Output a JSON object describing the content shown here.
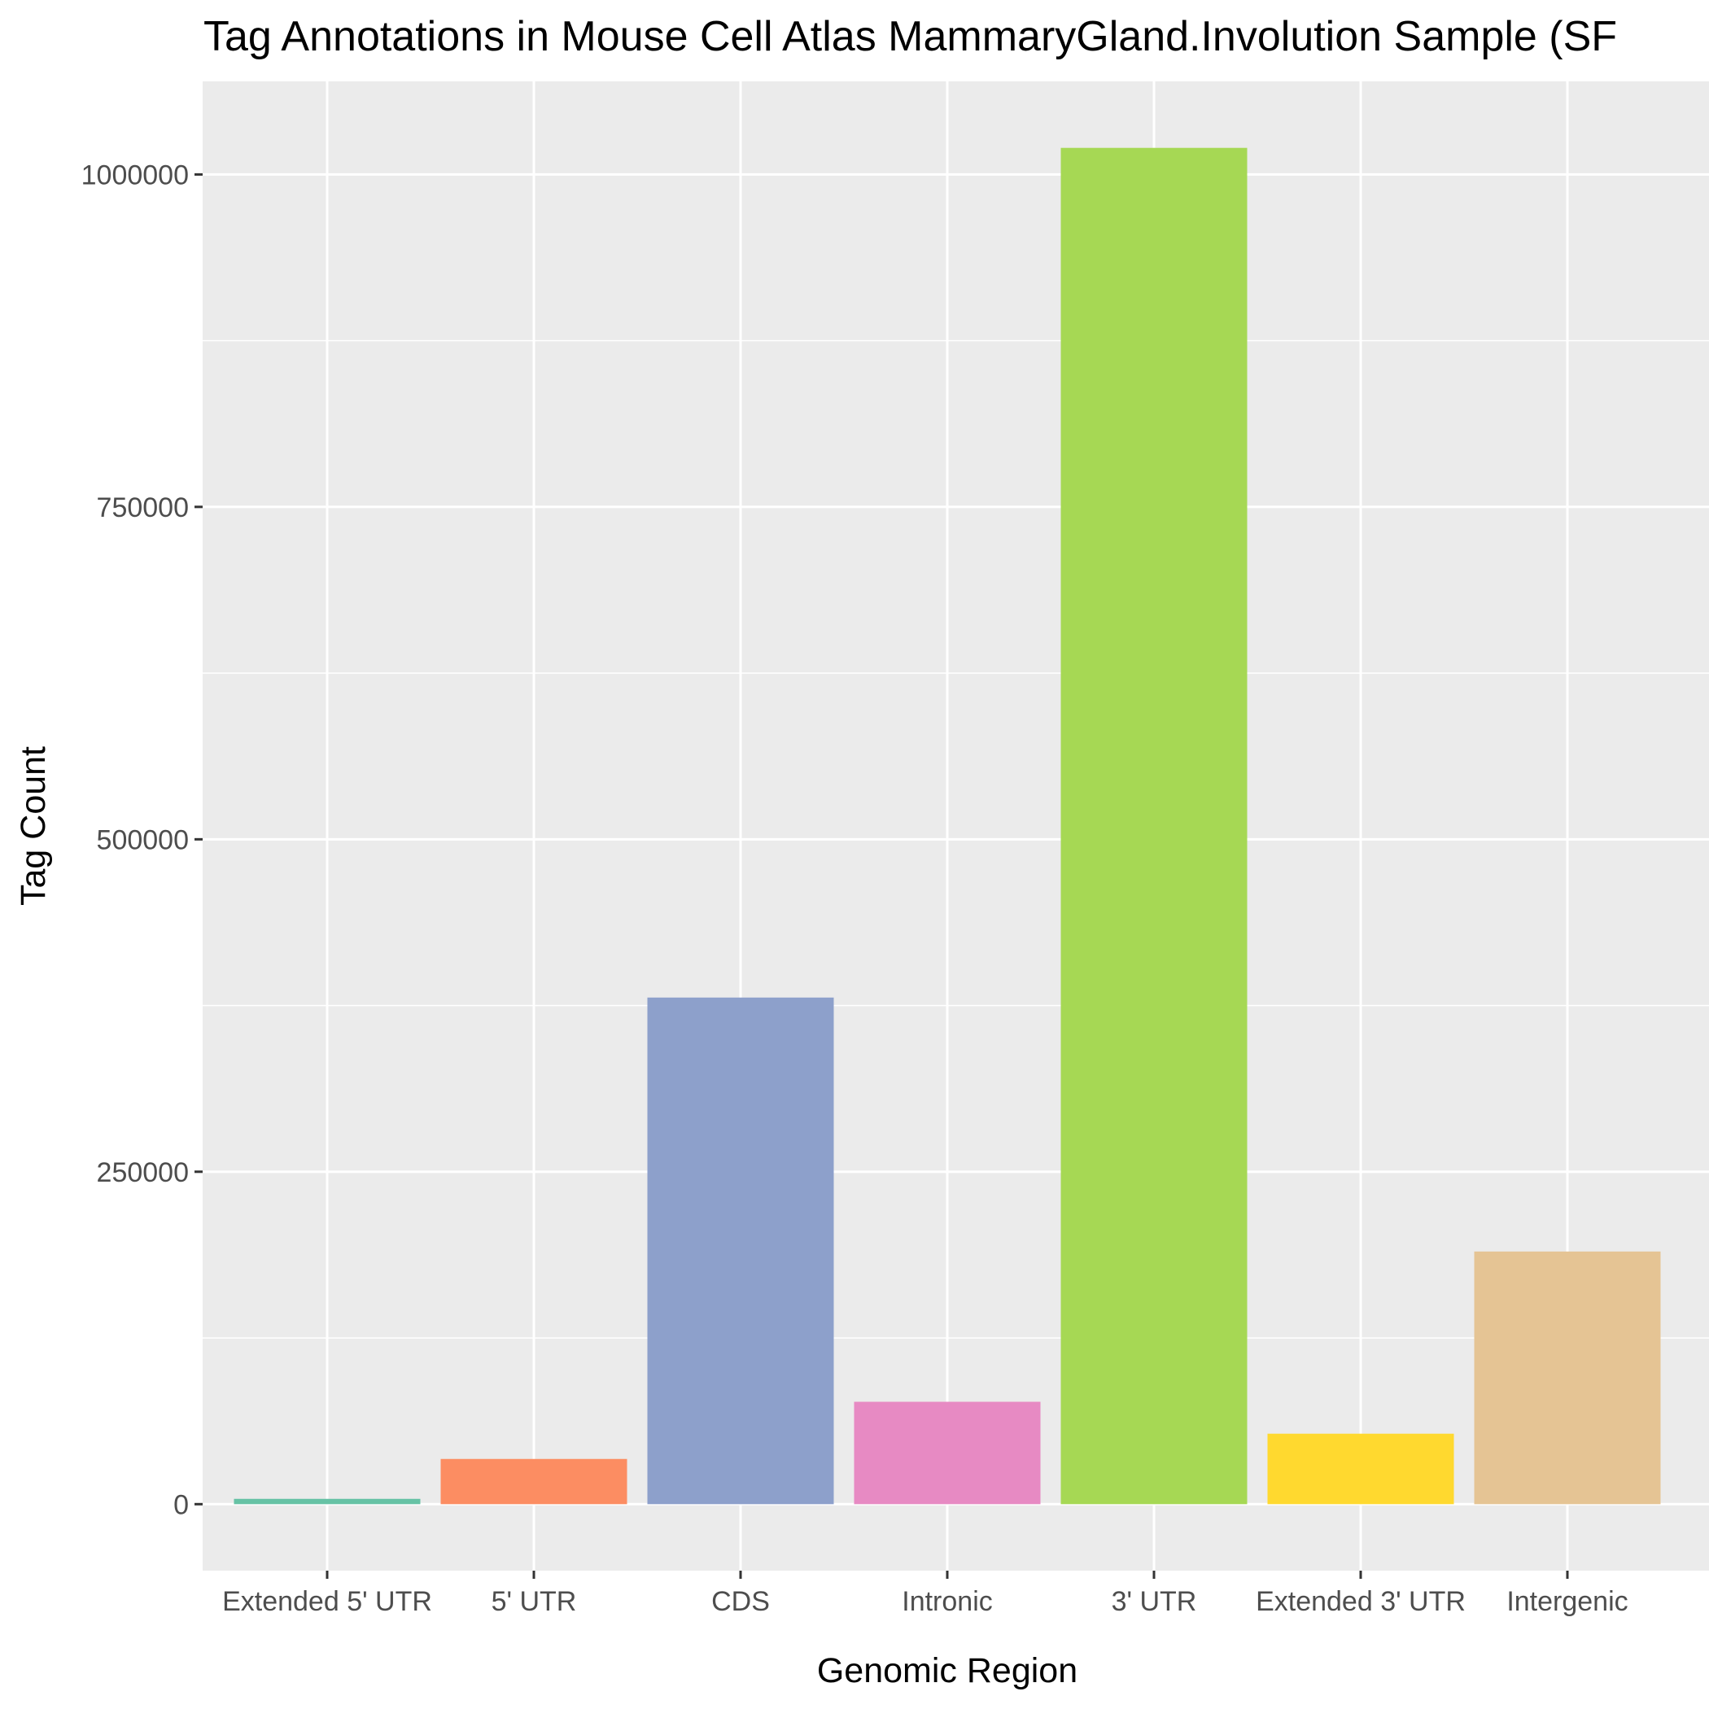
{
  "chart_data": {
    "type": "bar",
    "title": "Tag Annotations in Mouse Cell Atlas MammaryGland.Involution Sample (SF",
    "xlabel": "Genomic Region",
    "ylabel": "Tag Count",
    "categories": [
      "Extended 5' UTR",
      "5' UTR",
      "CDS",
      "Intronic",
      "3' UTR",
      "Extended 3' UTR",
      "Intergenic"
    ],
    "values": [
      4000,
      34000,
      381000,
      77000,
      1020000,
      53000,
      190000
    ],
    "colors": [
      "#66c2a5",
      "#fc8d62",
      "#8da0cb",
      "#e78ac3",
      "#a6d854",
      "#ffd92f",
      "#e5c494"
    ],
    "ylim": [
      -50000,
      1070000
    ],
    "yticks": [
      0,
      250000,
      500000,
      750000,
      1000000
    ],
    "ytick_labels": [
      "0",
      "250000",
      "500000",
      "750000",
      "1000000"
    ],
    "grid": true,
    "panel_background": "#ebebeb",
    "grid_color": "#ffffff"
  }
}
